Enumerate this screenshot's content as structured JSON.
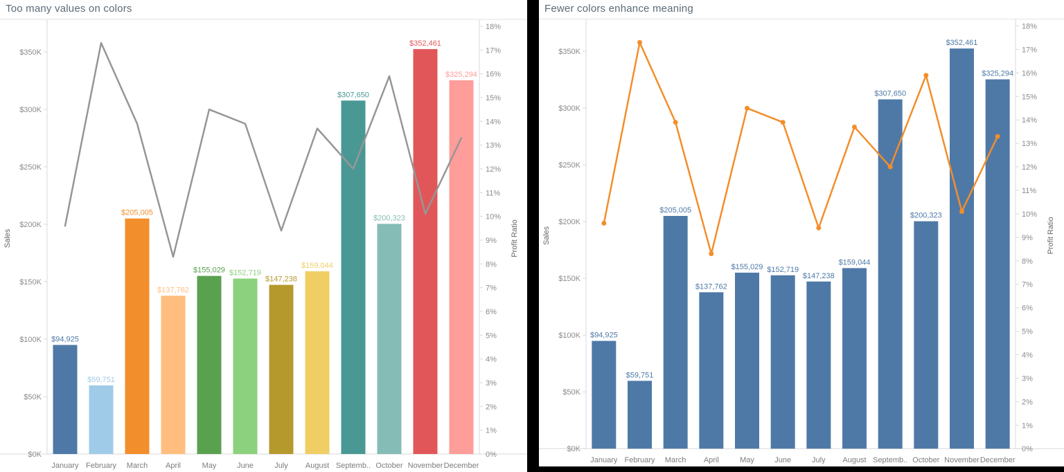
{
  "chart_data": [
    {
      "id": "too-many-colors",
      "type": "bar+line",
      "title": "Too many values on colors",
      "categories": [
        "January",
        "February",
        "March",
        "April",
        "May",
        "June",
        "July",
        "August",
        "September",
        "October",
        "November",
        "December"
      ],
      "x_tick_labels": [
        "January",
        "February",
        "March",
        "April",
        "May",
        "June",
        "July",
        "August",
        "Septemb..",
        "October",
        "November",
        "December"
      ],
      "bars": {
        "name": "Sales",
        "values": [
          94925,
          59751,
          205005,
          137762,
          155029,
          152719,
          147238,
          159044,
          307650,
          200323,
          352461,
          325294
        ],
        "value_labels": [
          "$94,925",
          "$59,751",
          "$205,005",
          "$137,762",
          "$155,029",
          "$152,719",
          "$147,238",
          "$159,044",
          "$307,650",
          "$200,323",
          "$352,461",
          "$325,294"
        ],
        "colors": [
          "#4E79A7",
          "#A0CBE8",
          "#F28E2B",
          "#FFBE7D",
          "#59A14F",
          "#8CD17D",
          "#B6992D",
          "#F1CE63",
          "#499894",
          "#86BCB6",
          "#E15759",
          "#FF9D9A"
        ]
      },
      "line": {
        "name": "Profit Ratio",
        "unit": "%",
        "values": [
          9.6,
          17.3,
          13.9,
          8.3,
          14.5,
          13.9,
          9.4,
          13.7,
          12.0,
          15.9,
          10.1,
          13.3
        ],
        "color": "#969696",
        "markers": false
      },
      "y_axis_left": {
        "title": "Sales",
        "tick_labels": [
          "$0K",
          "$50K",
          "$100K",
          "$150K",
          "$200K",
          "$250K",
          "$300K",
          "$350K"
        ],
        "min": 0,
        "max": 350000,
        "tick_step": 50000
      },
      "y_axis_right": {
        "title": "Profit Ratio",
        "tick_labels": [
          "0%",
          "1%",
          "2%",
          "3%",
          "4%",
          "5%",
          "6%",
          "7%",
          "8%",
          "9%",
          "10%",
          "11%",
          "12%",
          "13%",
          "14%",
          "15%",
          "16%",
          "17%",
          "18%"
        ],
        "min": 0,
        "max": 18,
        "tick_step": 1
      },
      "grid": "off",
      "legend": "none"
    },
    {
      "id": "fewer-colors",
      "type": "bar+line",
      "title": "Fewer colors enhance meaning",
      "categories": [
        "January",
        "February",
        "March",
        "April",
        "May",
        "June",
        "July",
        "August",
        "September",
        "October",
        "November",
        "December"
      ],
      "x_tick_labels": [
        "January",
        "February",
        "March",
        "April",
        "May",
        "June",
        "July",
        "August",
        "Septemb..",
        "October",
        "November",
        "December"
      ],
      "bars": {
        "name": "Sales",
        "values": [
          94925,
          59751,
          205005,
          137762,
          155029,
          152719,
          147238,
          159044,
          307650,
          200323,
          352461,
          325294
        ],
        "value_labels": [
          "$94,925",
          "$59,751",
          "$205,005",
          "$137,762",
          "$155,029",
          "$152,719",
          "$147,238",
          "$159,044",
          "$307,650",
          "$200,323",
          "$352,461",
          "$325,294"
        ],
        "color": "#4E79A7",
        "label_color": "#4E79A7"
      },
      "line": {
        "name": "Profit Ratio",
        "unit": "%",
        "values": [
          9.6,
          17.3,
          13.9,
          8.3,
          14.5,
          13.9,
          9.4,
          13.7,
          12.0,
          15.9,
          10.1,
          13.3
        ],
        "color": "#F28E2B",
        "markers": true
      },
      "y_axis_left": {
        "title": "Sales",
        "tick_labels": [
          "$0K",
          "$50K",
          "$100K",
          "$150K",
          "$200K",
          "$250K",
          "$300K",
          "$350K"
        ],
        "min": 0,
        "max": 350000,
        "tick_step": 50000
      },
      "y_axis_right": {
        "title": "Profit Ratio",
        "tick_labels": [
          "0%",
          "1%",
          "2%",
          "3%",
          "4%",
          "5%",
          "6%",
          "7%",
          "8%",
          "9%",
          "10%",
          "11%",
          "12%",
          "13%",
          "14%",
          "15%",
          "16%",
          "17%",
          "18%"
        ],
        "min": 0,
        "max": 18,
        "tick_step": 1
      },
      "grid": "off",
      "legend": "none"
    }
  ]
}
